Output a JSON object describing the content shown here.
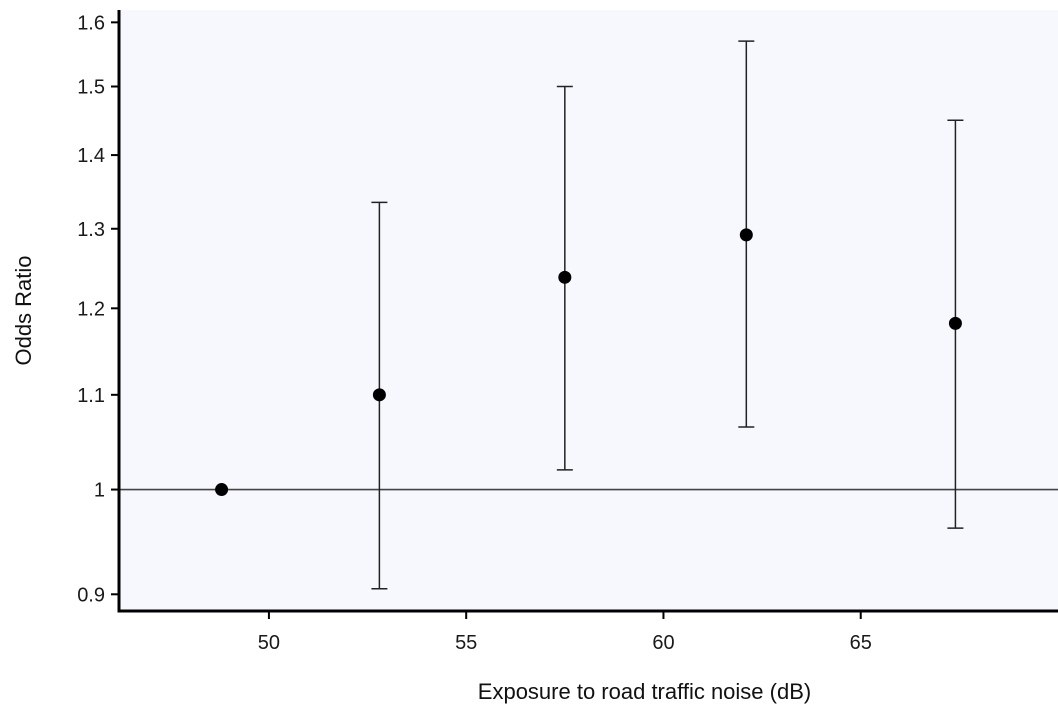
{
  "chart_data": {
    "type": "scatter",
    "xlabel": "Exposure to road traffic noise (dB)",
    "ylabel": "Odds Ratio",
    "x_ticks": [
      50,
      55,
      60,
      65
    ],
    "y_ticks": [
      0.9,
      1,
      1.1,
      1.2,
      1.3,
      1.4,
      1.5,
      1.6
    ],
    "y_tick_labels": [
      "0.9",
      "1",
      "1.1",
      "1.2",
      "1.3",
      "1.4",
      "1.5",
      "1.6"
    ],
    "x_tick_labels": [
      "50",
      "55",
      "60",
      "65"
    ],
    "y_scale": "log",
    "xlim": [
      46.2,
      70
    ],
    "ylim": [
      0.885,
      1.62
    ],
    "reference_line": 1,
    "grid": false,
    "background_color": "#f7f8fe",
    "marker_color": "#000000",
    "points": [
      {
        "x": 48.8,
        "or": 1.0,
        "lower": null,
        "upper": null
      },
      {
        "x": 52.8,
        "or": 1.1,
        "lower": 0.905,
        "upper": 1.335
      },
      {
        "x": 57.5,
        "or": 1.238,
        "lower": 1.02,
        "upper": 1.5
      },
      {
        "x": 62.1,
        "or": 1.292,
        "lower": 1.065,
        "upper": 1.57
      },
      {
        "x": 67.4,
        "or": 1.182,
        "lower": 0.962,
        "upper": 1.45
      }
    ]
  }
}
